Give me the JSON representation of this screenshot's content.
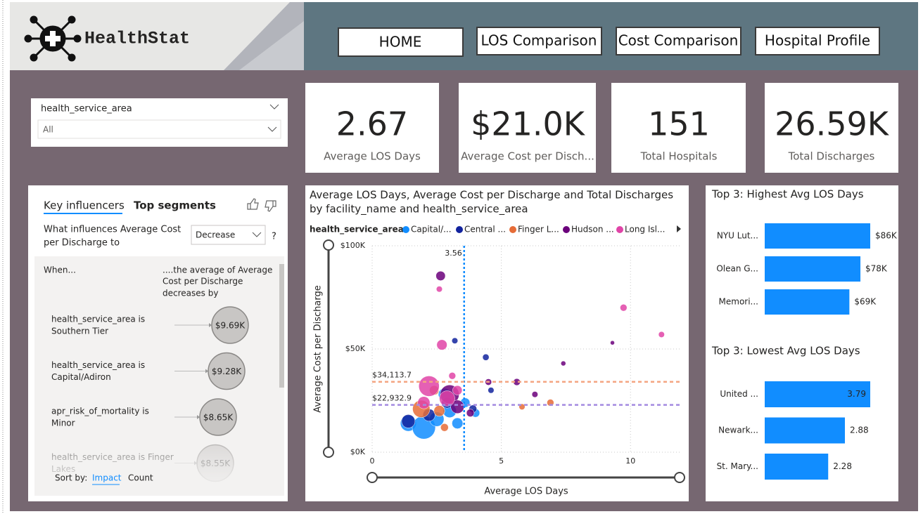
{
  "header": {
    "logo_text": "HealthStat",
    "nav": [
      "HOME",
      "LOS Comparison",
      "Cost Comparison",
      "Hospital Profile"
    ]
  },
  "filter": {
    "label": "health_service_area",
    "value": "All"
  },
  "kpis": [
    {
      "value": "2.67",
      "label": "Average LOS Days"
    },
    {
      "value": "$21.0K",
      "label": "Average Cost per Disch..."
    },
    {
      "value": "151",
      "label": "Total Hospitals"
    },
    {
      "value": "26.59K",
      "label": "Total Discharges"
    }
  ],
  "key_influencers": {
    "tabs": [
      "Key influencers",
      "Top segments"
    ],
    "question_lines": [
      "What influences Average Cost",
      "per Discharge to"
    ],
    "dropdown": "Decrease",
    "help": "?",
    "col_when": "When...",
    "col_avg_lines": [
      "....the average of Average",
      "Cost per Discharge",
      "decreases by"
    ],
    "items": [
      {
        "label_lines": [
          "health_service_area is",
          "Southern Tier"
        ],
        "value": "$9.69K"
      },
      {
        "label_lines": [
          "health_service_area is",
          "Capital/Adiron"
        ],
        "value": "$9.28K"
      },
      {
        "label_lines": [
          "apr_risk_of_mortality is",
          "Minor"
        ],
        "value": "$8.65K"
      },
      {
        "label_lines": [
          "health_service_area is Finger",
          "Lakes"
        ],
        "value": "$8.55K"
      }
    ],
    "sort_label": "Sort by:",
    "sort_options": [
      "Impact",
      "Count"
    ]
  },
  "chart_data": [
    {
      "type": "scatter",
      "title_lines": [
        "Average LOS Days, Average Cost per Discharge and Total Discharges",
        "by facility_name and health_service_area"
      ],
      "x_label": "Average LOS Days",
      "y_label": "Average Cost per Discharge",
      "legend_title": "health_service_area",
      "xlim": [
        0,
        11.9
      ],
      "xticks": [
        0,
        5,
        10
      ],
      "ylim": [
        0,
        100000
      ],
      "yticks": [
        {
          "value": 0,
          "label": "$0K"
        },
        {
          "value": 50000,
          "label": "$50K"
        },
        {
          "value": 100000,
          "label": "$100K"
        }
      ],
      "grid": true,
      "reference_lines": [
        {
          "axis": "x",
          "value": 3.56,
          "color": "#118dff"
        },
        {
          "axis": "y",
          "value": 34113.7,
          "label": "$34,113.7",
          "color": "#f4a582"
        },
        {
          "axis": "y",
          "value": 22932.9,
          "label": "$22,932.9",
          "color": "#a48be0"
        }
      ],
      "series": [
        {
          "name": "Capital/...",
          "color": "#118dff",
          "x": [
            1.4,
            2.0,
            2.5,
            3.0,
            3.3,
            4.0,
            3.6,
            2.8
          ],
          "values": [
            14000,
            12000,
            16000,
            20000,
            14000,
            19000,
            24000,
            28000
          ],
          "sizes": [
            420,
            900,
            350,
            300,
            200,
            120,
            150,
            250
          ]
        },
        {
          "name": "Central ...",
          "color": "#12239e",
          "x": [
            1.4,
            2.2,
            3.2,
            3.9,
            4.4,
            2.9,
            4.6
          ],
          "values": [
            15000,
            18000,
            54000,
            21000,
            46000,
            24000,
            30000
          ],
          "sizes": [
            300,
            250,
            60,
            100,
            70,
            200,
            60
          ]
        },
        {
          "name": "Finger L...",
          "color": "#e66c37",
          "x": [
            1.9,
            2.6,
            2.8,
            5.8,
            6.9,
            2.4
          ],
          "values": [
            21000,
            20000,
            12000,
            22000,
            24000,
            30000
          ],
          "sizes": [
            500,
            200,
            100,
            60,
            80,
            150
          ]
        },
        {
          "name": "Hudson ...",
          "color": "#6b007b",
          "x": [
            2.65,
            3.0,
            3.3,
            5.6,
            7.4,
            9.3,
            6.3,
            4.5,
            3.8
          ],
          "values": [
            85400,
            28000,
            22000,
            34000,
            43000,
            53000,
            28000,
            34000,
            19000
          ],
          "sizes": [
            150,
            600,
            300,
            80,
            40,
            30,
            60,
            70,
            100
          ]
        },
        {
          "name": "Long Isl...",
          "color": "#e044a7",
          "x": [
            2.6,
            2.7,
            2.2,
            2.9,
            3.3,
            2.0,
            3.1,
            9.73,
            11.2
          ],
          "values": [
            79000,
            52000,
            32000,
            26000,
            30000,
            24000,
            37000,
            70000,
            57000
          ],
          "sizes": [
            60,
            180,
            700,
            400,
            150,
            250,
            80,
            80,
            60
          ]
        }
      ]
    },
    {
      "type": "bar",
      "title": "Top 3: Highest Avg LOS Days",
      "categories": [
        "NYU Lut...",
        "Olean G...",
        "Memori..."
      ],
      "values": [
        86000,
        78000,
        69000
      ],
      "value_labels": [
        "$86K",
        "$78K",
        "$69K"
      ],
      "color": "#118dff"
    },
    {
      "type": "bar",
      "title": "Top 3: Lowest Avg LOS Days",
      "categories": [
        "United ...",
        "Newark...",
        "St. Mary..."
      ],
      "values": [
        3.79,
        2.88,
        2.28
      ],
      "color": "#118dff"
    }
  ]
}
